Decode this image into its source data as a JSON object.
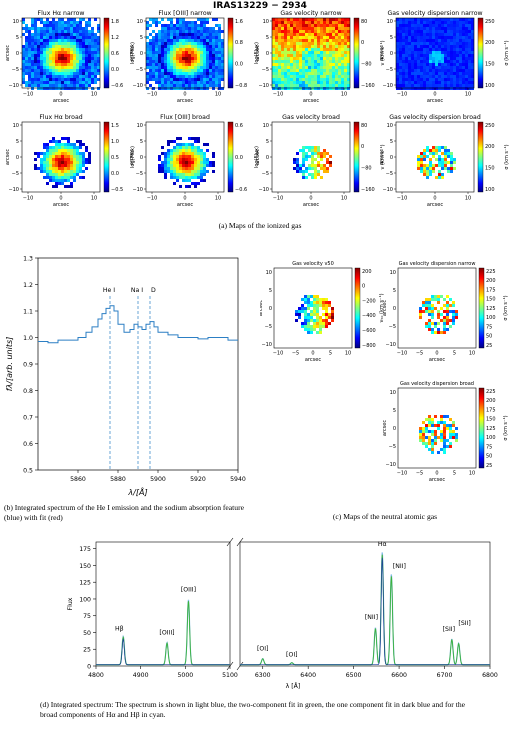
{
  "figure_a": {
    "title": "IRAS13229 − 2934",
    "caption": "(a) Maps of the ionized gas",
    "panels": [
      {
        "title": "Flux Hα narrow",
        "cbar_label": "log(Flux)",
        "cbar_ticks": [
          "1.8",
          "1.2",
          "0.6",
          "0.0",
          "−0.6"
        ]
      },
      {
        "title": "Flux [OIII] narrow",
        "cbar_label": "log(Flux)",
        "cbar_ticks": [
          "1.6",
          "0.8",
          "0.0",
          "−0.8"
        ]
      },
      {
        "title": "Gas velocity narrow",
        "cbar_label": "v (km s⁻¹)",
        "cbar_ticks": [
          "80",
          "0",
          "−80",
          "−160"
        ]
      },
      {
        "title": "Gas velocity dispersion narrow",
        "cbar_label": "σ (km s⁻¹)",
        "cbar_ticks": [
          "250",
          "200",
          "150",
          "100"
        ]
      },
      {
        "title": "Flux Hα broad",
        "cbar_label": "log(Flux)",
        "cbar_ticks": [
          "1.5",
          "1.0",
          "0.5",
          "0.0",
          "−0.5"
        ]
      },
      {
        "title": "Flux [OIII] broad",
        "cbar_label": "log(Flux)",
        "cbar_ticks": [
          "0.6",
          "0.0",
          "−0.6"
        ]
      },
      {
        "title": "Gas velocity broad",
        "cbar_label": "v (km s⁻¹)",
        "cbar_ticks": [
          "80",
          "0",
          "−80",
          "−160"
        ]
      },
      {
        "title": "Gas velocity dispersion broad",
        "cbar_label": "σ (km s⁻¹)",
        "cbar_ticks": [
          "250",
          "200",
          "150",
          "100"
        ]
      }
    ],
    "axis_label": "arcsec",
    "y_ticks": [
      "10",
      "5",
      "0",
      "−5",
      "−10"
    ],
    "x_ticks": [
      "−10",
      "0",
      "10"
    ]
  },
  "figure_b": {
    "caption": "(b) Integrated spectrum of the He I emission and the sodium absorption feature (blue) with fit (red)"
  },
  "figure_c": {
    "caption": "(c) Maps of the neutral atomic gas",
    "panels": [
      {
        "title": "Gas velocity v50",
        "cbar_label": "v₅₀ (km s⁻¹)",
        "cbar_ticks": [
          "200",
          "0",
          "−200",
          "−400",
          "−600",
          "−800"
        ]
      },
      {
        "title": "Gas velocity dispersion narrow",
        "cbar_label": "σ (km s⁻¹)",
        "cbar_ticks": [
          "225",
          "200",
          "175",
          "150",
          "125",
          "100",
          "75",
          "50",
          "25"
        ]
      },
      {
        "title": "Gas velocity dispersion broad",
        "cbar_label": "σ (km s⁻¹)",
        "cbar_ticks": [
          "225",
          "200",
          "175",
          "150",
          "125",
          "100",
          "75",
          "50",
          "25"
        ]
      }
    ],
    "x_ticks": [
      "−10",
      "−5",
      "0",
      "5",
      "10"
    ],
    "y_ticks": [
      "10",
      "5",
      "0",
      "−5",
      "−10"
    ],
    "axis_label": "arcsec"
  },
  "figure_d": {
    "caption": "(d) Integrated spectrum: The spectrum is shown in light blue, the two-component fit in green, the one component fit in dark blue and for the broad components of Hα and Hβ in cyan."
  },
  "chart_data": [
    {
      "type": "line",
      "id": "He I / Na I D spectrum",
      "xlabel": "λ/[Å]",
      "ylabel": "fλ/[arb. units]",
      "xlim": [
        5840,
        5940
      ],
      "ylim": [
        0.5,
        1.3
      ],
      "x_ticks": [
        5860,
        5880,
        5900,
        5920,
        5940
      ],
      "y_ticks": [
        0.5,
        0.6,
        0.7,
        0.8,
        0.9,
        1.0,
        1.1,
        1.2,
        1.3
      ],
      "grid": false,
      "series": [
        {
          "x": [
            5840,
            5845,
            5850,
            5855,
            5860,
            5864,
            5867,
            5870,
            5872,
            5874,
            5876,
            5878,
            5880,
            5883,
            5886,
            5888,
            5890,
            5892,
            5894,
            5896,
            5898,
            5900,
            5905,
            5910,
            5915,
            5920,
            5925,
            5930,
            5935,
            5940
          ],
          "y": [
            0.985,
            0.98,
            0.99,
            0.99,
            1.0,
            1.02,
            1.04,
            1.07,
            1.09,
            1.11,
            1.12,
            1.1,
            1.05,
            1.02,
            1.03,
            1.05,
            1.04,
            1.03,
            1.05,
            1.06,
            1.04,
            1.02,
            1.01,
            1.0,
            1.0,
            0.995,
            1.0,
            1.0,
            0.99,
            0.99
          ]
        }
      ],
      "annotations": [
        {
          "label": "He I",
          "x": 5876
        },
        {
          "label": "Na I",
          "x": 5890
        },
        {
          "label": "D",
          "x": 5896
        }
      ]
    },
    {
      "type": "line",
      "id": "Integrated optical spectrum",
      "xlabel": "λ [Å]",
      "ylabel": "Flux",
      "ylim": [
        0,
        185
      ],
      "y_ticks": [
        0,
        25,
        50,
        75,
        100,
        125,
        150,
        175
      ],
      "x_ticks_left": [
        4800,
        4900,
        5000,
        5100
      ],
      "x_ticks_right": [
        6300,
        6400,
        6500,
        6600,
        6700,
        6800
      ],
      "grid": false,
      "lines": [
        {
          "label": "Hβ",
          "x": 4861,
          "peak": 42
        },
        {
          "label": "[OIII]",
          "x": 4959,
          "peak": 33
        },
        {
          "label": "[OIII]",
          "x": 5007,
          "peak": 97
        },
        {
          "label": "[OI]",
          "x": 6300,
          "peak": 9
        },
        {
          "label": "[OI]",
          "x": 6364,
          "peak": 3
        },
        {
          "label": "[NII]",
          "x": 6548,
          "peak": 55
        },
        {
          "label": "Hα",
          "x": 6563,
          "peak": 168
        },
        {
          "label": "[NII]",
          "x": 6583,
          "peak": 135
        },
        {
          "label": "[SII]",
          "x": 6716,
          "peak": 38
        },
        {
          "label": "[SII]",
          "x": 6731,
          "peak": 32
        }
      ]
    }
  ]
}
